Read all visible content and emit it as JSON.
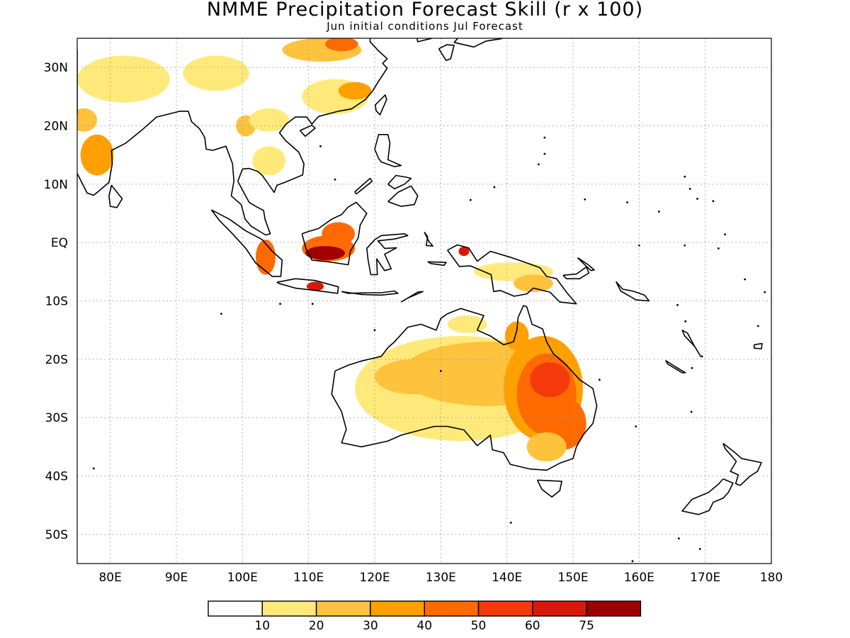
{
  "map": {
    "title": "NMME Precipitation Forecast Skill (r x 100)",
    "subtitle": "Jun initial conditions  Jul Forecast",
    "lat_range": [
      -55,
      35
    ],
    "lon_range": [
      75,
      180
    ],
    "lat_ticks": [
      "30N",
      "20N",
      "10N",
      "EQ",
      "10S",
      "20S",
      "30S",
      "40S",
      "50S"
    ],
    "lon_ticks": [
      "80E",
      "90E",
      "100E",
      "110E",
      "120E",
      "130E",
      "140E",
      "150E",
      "160E",
      "170E",
      "180"
    ],
    "grid": "dotted"
  },
  "legend": {
    "bins": [
      {
        "color": "#ffffff"
      },
      {
        "color": "#ffe97a"
      },
      {
        "color": "#ffc23c"
      },
      {
        "color": "#ffa000"
      },
      {
        "color": "#ff6a00"
      },
      {
        "color": "#f43a0a"
      },
      {
        "color": "#d81808"
      },
      {
        "color": "#a00000"
      }
    ],
    "labels": [
      "10",
      "20",
      "30",
      "40",
      "50",
      "60",
      "75"
    ]
  },
  "regions": {
    "australia_skill": "high skill over eastern Australia",
    "borneo_skill": "high skill over southern Borneo"
  }
}
